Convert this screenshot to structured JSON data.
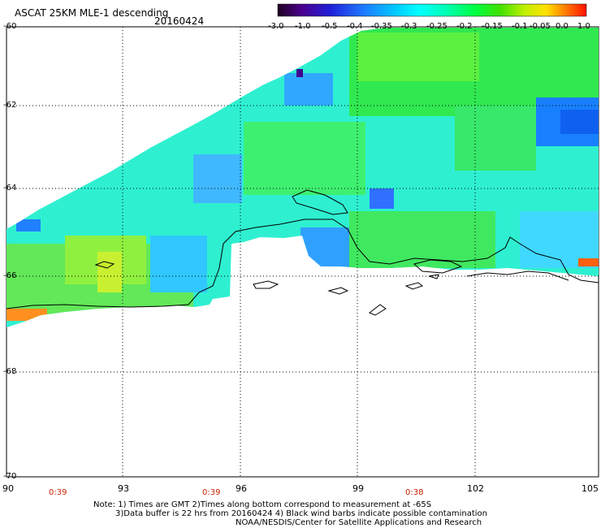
{
  "header": {
    "title": "ASCAT 25KM MLE-1 descending",
    "date": "20160424"
  },
  "colorbar": {
    "labels": [
      "-3.0",
      "-1.0",
      "-0.5",
      "-0.4",
      "-0.35",
      "-0.3",
      "-0.25",
      "-0.2",
      "-0.15",
      "-0.1",
      "-0.05",
      "0.0",
      "1.0"
    ]
  },
  "axes": {
    "x_ticks": [
      "90",
      "93",
      "96",
      "99",
      "102",
      "105"
    ],
    "y_ticks": [
      "-60",
      "-62",
      "-64",
      "-66",
      "-68",
      "-70"
    ]
  },
  "times": [
    "0:39",
    "0:39",
    "0:38"
  ],
  "notes": {
    "line1": "Note: 1) Times are GMT 2)Times along bottom correspond to measurement at -65S",
    "line2": "3)Data buffer is 22 hrs from 20160424 4) Black wind barbs indicate possible contamination",
    "line3": "NOAA/NESDIS/Center for Satellite Applications and Research"
  },
  "colors": {
    "scale": [
      "#2a0033",
      "#4a0080",
      "#2020d0",
      "#2060ff",
      "#00a0ff",
      "#00e8ff",
      "#00ffd0",
      "#00ff80",
      "#40e020",
      "#a0f000",
      "#f0f000",
      "#ff9000",
      "#ff2000"
    ],
    "coast": "#000000"
  }
}
